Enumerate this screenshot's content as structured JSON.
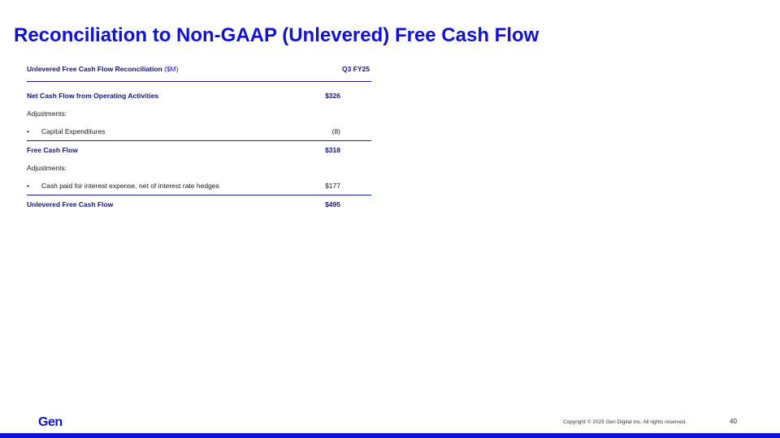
{
  "title": "Reconciliation to Non-GAAP (Unlevered) Free Cash Flow",
  "table": {
    "header": {
      "label": "Unlevered Free Cash Flow Reconciliation",
      "unit": "($M)",
      "period": "Q3 FY25"
    },
    "rows": [
      {
        "label": "Net Cash Flow from Operating Activities",
        "value": "$326",
        "style": "bold"
      },
      {
        "label": "Adjustments:",
        "value": "",
        "style": "plain"
      },
      {
        "label": "Capital Expenditures",
        "value": "(8)",
        "style": "bullet"
      },
      {
        "label": "Free Cash Flow",
        "value": "$318",
        "style": "bold"
      },
      {
        "label": "Adjustments:",
        "value": "",
        "style": "plain"
      },
      {
        "label": "Cash paid for interest expense, net of interest rate hedges",
        "value": "$177",
        "style": "bullet"
      },
      {
        "label": "Unlevered Free Cash Flow",
        "value": "$495",
        "style": "bold"
      }
    ]
  },
  "footer": {
    "logo": "Gen",
    "copyright": "Copyright © 2025 Gen Digital Inc. All rights reserved.",
    "page": "40"
  },
  "colors": {
    "accent": "#1010d8",
    "dark_navy": "#14147a"
  }
}
